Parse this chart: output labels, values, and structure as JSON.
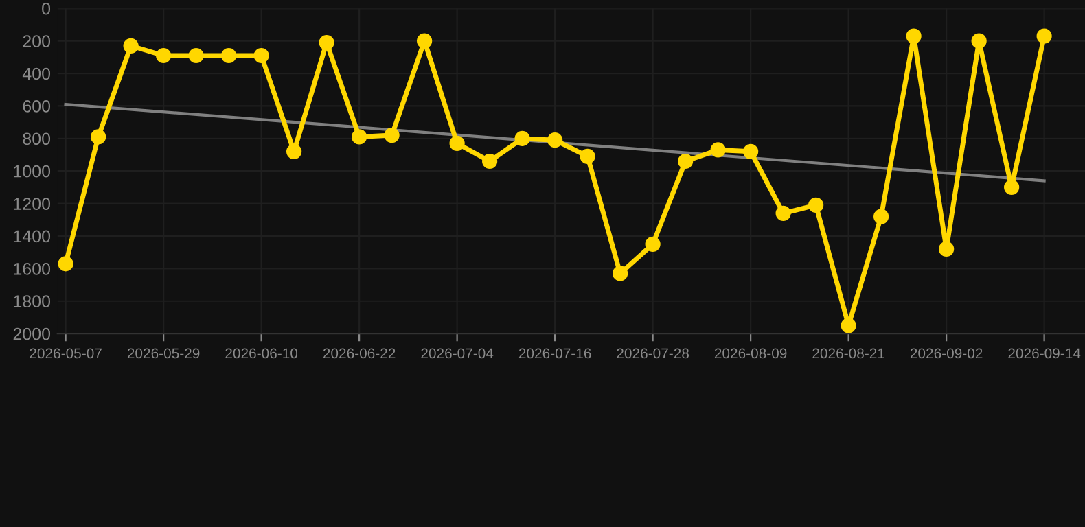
{
  "chart_data": {
    "type": "line",
    "categories": [
      "2026-05-07",
      null,
      null,
      "2026-05-29",
      null,
      null,
      "2026-06-10",
      null,
      null,
      "2026-06-22",
      null,
      null,
      "2026-07-04",
      null,
      null,
      "2026-07-16",
      null,
      null,
      "2026-07-28",
      null,
      null,
      "2026-08-09",
      null,
      null,
      "2026-08-21",
      null,
      null,
      "2026-09-02",
      null,
      null,
      "2026-09-14"
    ],
    "series": [
      {
        "color": "#ffd700",
        "marker": "circle",
        "values": [
          1570,
          790,
          230,
          290,
          290,
          290,
          290,
          880,
          210,
          790,
          780,
          200,
          830,
          940,
          800,
          810,
          910,
          1630,
          1450,
          940,
          870,
          880,
          1260,
          1210,
          1950,
          1280,
          170,
          1480,
          200,
          1100,
          170
        ]
      },
      {
        "type": "line",
        "color": "#808080",
        "marker": "none",
        "values": [
          590,
          null,
          null,
          null,
          null,
          null,
          null,
          null,
          null,
          null,
          null,
          null,
          null,
          null,
          null,
          null,
          null,
          null,
          null,
          null,
          null,
          null,
          null,
          null,
          null,
          null,
          null,
          null,
          null,
          null,
          1060
        ]
      }
    ],
    "ylim": [
      2000,
      0
    ],
    "yticks": [
      0,
      200,
      400,
      600,
      800,
      1000,
      1200,
      1400,
      1600,
      1800,
      2000
    ],
    "grid": true,
    "line_style": "solid"
  }
}
